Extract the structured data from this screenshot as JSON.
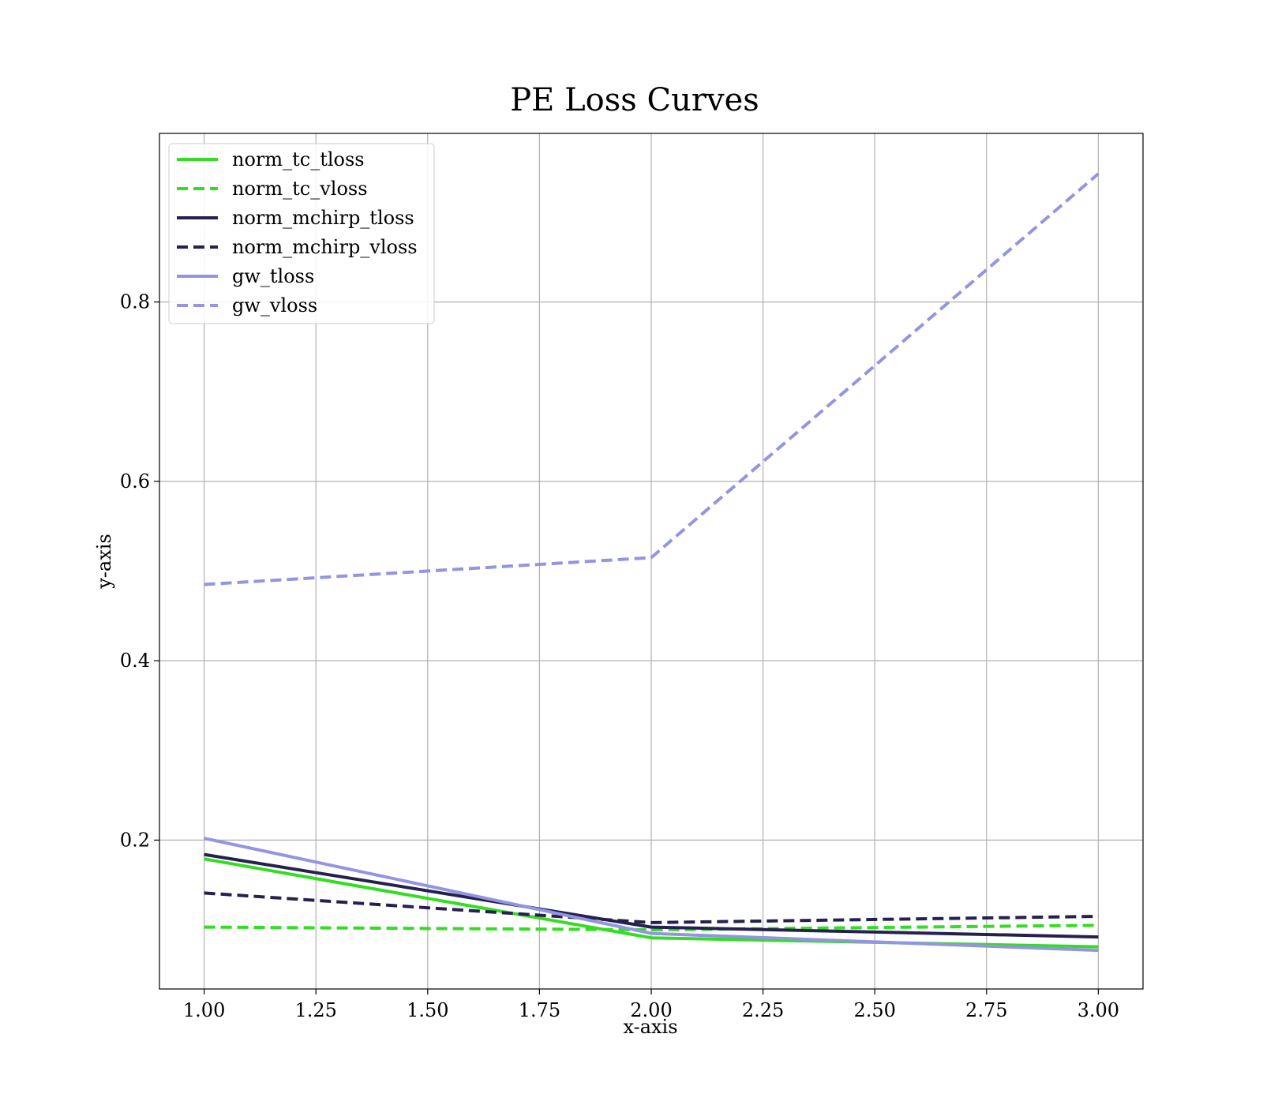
{
  "chart_data": {
    "type": "line",
    "title": "PE Loss Curves",
    "xlabel": "x-axis",
    "ylabel": "y-axis",
    "xlim": [
      0.9,
      3.1
    ],
    "ylim": [
      0.034,
      0.988
    ],
    "xticks": [
      1.0,
      1.25,
      1.5,
      1.75,
      2.0,
      2.25,
      2.5,
      2.75,
      3.0
    ],
    "xtick_labels": [
      "1.00",
      "1.25",
      "1.50",
      "1.75",
      "2.00",
      "2.25",
      "2.50",
      "2.75",
      "3.00"
    ],
    "yticks": [
      0.2,
      0.4,
      0.6,
      0.8
    ],
    "ytick_labels": [
      "0.2",
      "0.4",
      "0.6",
      "0.8"
    ],
    "grid": true,
    "legend_position": "top-left",
    "x": [
      1,
      2,
      3
    ],
    "series": [
      {
        "name": "norm_tc_tloss",
        "values": [
          0.179,
          0.091,
          0.081
        ],
        "color": "#33dd22",
        "style": "solid"
      },
      {
        "name": "norm_tc_vloss",
        "values": [
          0.103,
          0.1,
          0.105
        ],
        "color": "#33dd22",
        "style": "dashed"
      },
      {
        "name": "norm_mchirp_tloss",
        "values": [
          0.184,
          0.103,
          0.092
        ],
        "color": "#25204f",
        "style": "solid"
      },
      {
        "name": "norm_mchirp_vloss",
        "values": [
          0.141,
          0.108,
          0.115
        ],
        "color": "#25204f",
        "style": "dashed"
      },
      {
        "name": "gw_tloss",
        "values": [
          0.202,
          0.096,
          0.077
        ],
        "color": "#9394e2",
        "style": "solid"
      },
      {
        "name": "gw_vloss",
        "values": [
          0.485,
          0.515,
          0.943
        ],
        "color": "#9394e2",
        "style": "dashed"
      }
    ]
  }
}
